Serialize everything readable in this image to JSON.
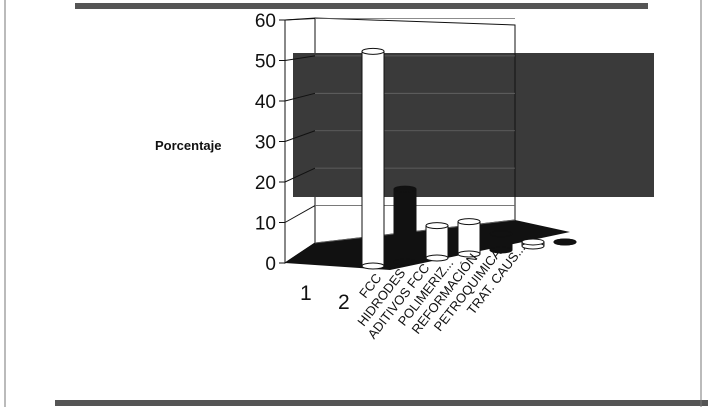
{
  "chart_data": {
    "type": "bar",
    "title": "",
    "ylabel": "Porcentaje",
    "xlabel": "",
    "ylim": [
      0,
      60
    ],
    "y_ticks": [
      "0",
      "10",
      "20",
      "30",
      "40",
      "50",
      "60"
    ],
    "depth_labels": [
      "1",
      "2"
    ],
    "categories": [
      "FCC",
      "HIDRODES",
      "ADITIVOS FCC",
      "POLIMERIZ...",
      "REFORMACIÓN",
      "PETROQUIMICA",
      "TRAT. CAUS..."
    ],
    "values": [
      53,
      18,
      8,
      8,
      4,
      1,
      0
    ],
    "bar_colors": [
      "#ffffff",
      "#111111",
      "#ffffff",
      "#ffffff",
      "#111111",
      "#ffffff",
      "#111111"
    ],
    "grid": true,
    "legend": "none"
  }
}
